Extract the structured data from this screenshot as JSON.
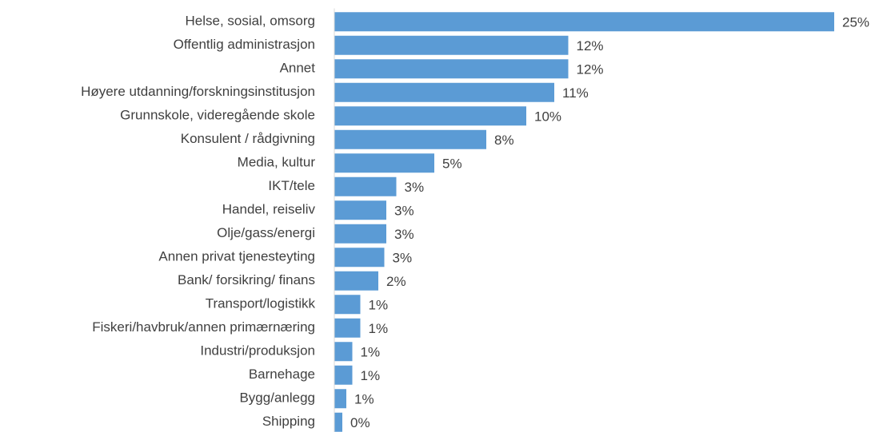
{
  "chart_data": {
    "type": "bar",
    "orientation": "horizontal",
    "categories": [
      "Helse, sosial, omsorg",
      "Offentlig administrasjon",
      "Annet",
      "Høyere utdanning/forskningsinstitusjon",
      "Grunnskole, videregående skole",
      "Konsulent / rådgivning",
      "Media, kultur",
      "IKT/tele",
      "Handel, reiseliv",
      "Olje/gass/energi",
      "Annen privat tjenesteyting",
      "Bank/ forsikring/ finans",
      "Transport/logistikk",
      "Fiskeri/havbruk/annen primærnæring",
      "Industri/produksjon",
      "Barnehage",
      "Bygg/anlegg",
      "Shipping"
    ],
    "values": [
      25.0,
      11.7,
      11.7,
      11.0,
      9.6,
      7.6,
      5.0,
      3.1,
      2.6,
      2.6,
      2.5,
      2.2,
      1.3,
      1.3,
      0.9,
      0.9,
      0.6,
      0.4
    ],
    "value_labels": [
      "25%",
      "12%",
      "12%",
      "11%",
      "10%",
      "8%",
      "5%",
      "3%",
      "3%",
      "3%",
      "3%",
      "2%",
      "1%",
      "1%",
      "1%",
      "1%",
      "1%",
      "0%"
    ],
    "color": "#5b9bd5",
    "xlim": [
      0,
      25
    ]
  }
}
